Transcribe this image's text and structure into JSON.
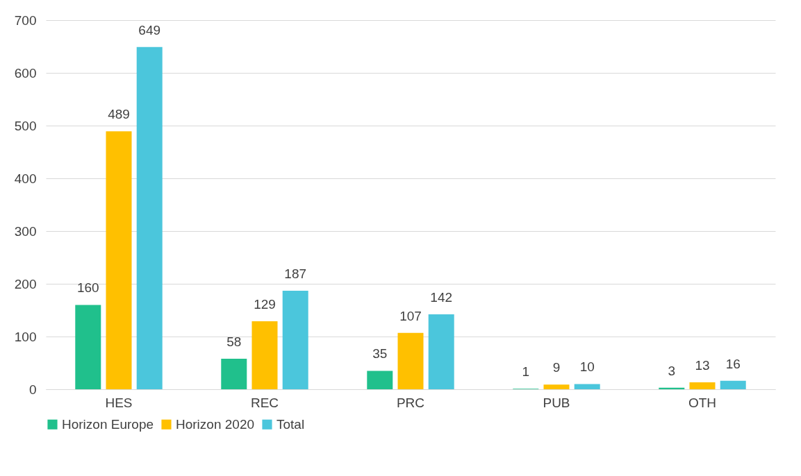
{
  "chart_data": {
    "type": "bar",
    "categories": [
      "HES",
      "REC",
      "PRC",
      "PUB",
      "OTH"
    ],
    "series": [
      {
        "name": "Horizon Europe",
        "color": "#20c08c",
        "values": [
          160,
          58,
          35,
          1,
          3
        ]
      },
      {
        "name": "Horizon 2020",
        "color": "#ffc000",
        "values": [
          489,
          129,
          107,
          9,
          13
        ]
      },
      {
        "name": "Total",
        "color": "#4bc6dc",
        "values": [
          649,
          187,
          142,
          10,
          16
        ]
      }
    ],
    "ylim": [
      0,
      700
    ],
    "yticks": [
      0,
      100,
      200,
      300,
      400,
      500,
      600,
      700
    ],
    "grid": "y",
    "legend": "bottom",
    "data_labels": true
  }
}
